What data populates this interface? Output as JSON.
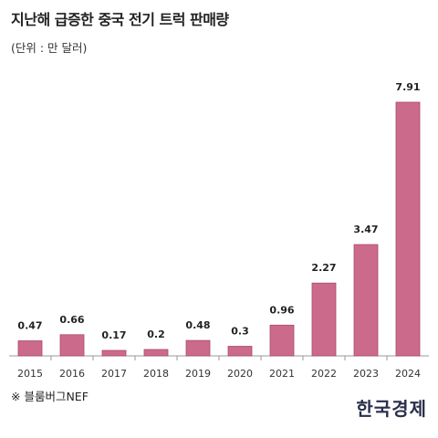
{
  "title": "지난해 급증한 중국 전기 트럭 판매량",
  "subtitle": "(단위 : 만 달러)",
  "source": "※ 블룸버그NEF",
  "logo_text": "한국경제",
  "colors": {
    "bar_fill": "#cc6a8c",
    "bar_stroke": "#a84a6c",
    "axis": "#999999"
  },
  "chart_data": {
    "type": "bar",
    "title": "지난해 급증한 중국 전기 트럭 판매량",
    "ylabel": "(단위 : 만 달러)",
    "xlabel": "",
    "categories": [
      "2015",
      "2016",
      "2017",
      "2018",
      "2019",
      "2020",
      "2021",
      "2022",
      "2023",
      "2024"
    ],
    "values": [
      0.47,
      0.66,
      0.17,
      0.2,
      0.48,
      0.3,
      0.96,
      2.27,
      3.47,
      7.91
    ],
    "value_labels": [
      "0.47",
      "0.66",
      "0.17",
      "0.2",
      "0.48",
      "0.3",
      "0.96",
      "2.27",
      "3.47",
      "7.91"
    ],
    "ylim": [
      0,
      7.91
    ],
    "grid": false,
    "legend": "none"
  }
}
